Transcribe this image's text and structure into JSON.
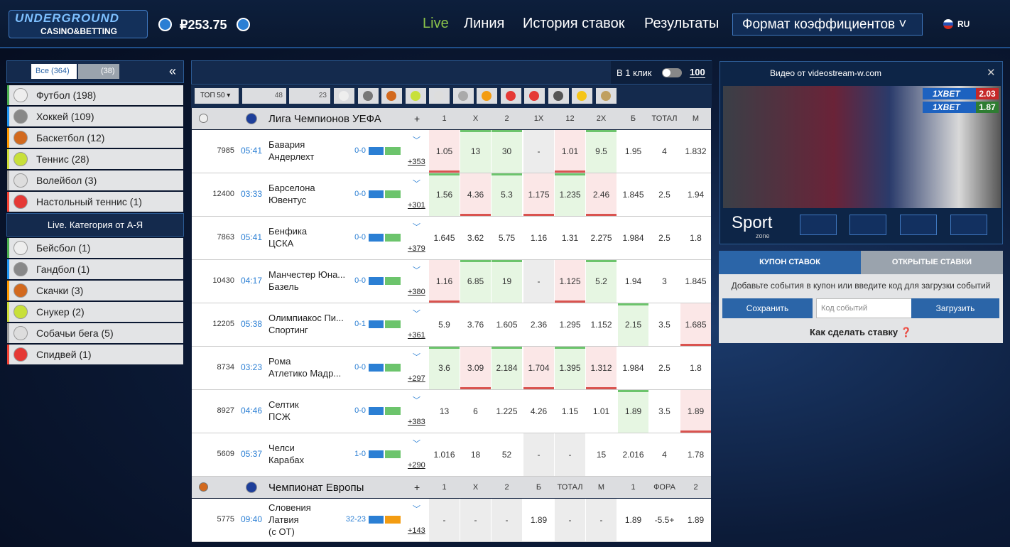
{
  "header": {
    "logo": "UNDERGROUND",
    "logo_sub": "CASINO&BETTING",
    "balance": "₽253.75",
    "nav": [
      "Live",
      "Линия",
      "История ставок",
      "Результаты"
    ],
    "odds_format": "Формат коэффициентов",
    "lang": "RU"
  },
  "sidebar": {
    "tab_all": "Все",
    "tab_all_count": "(364)",
    "tab_video_count": "(38)",
    "sports": [
      "Футбол (198)",
      "Хоккей (109)",
      "Баскетбол (12)",
      "Теннис (28)",
      "Волейбол (3)",
      "Настольный теннис (1)"
    ],
    "category_title": "Live. Категория от А-Я",
    "more_sports": [
      "Бейсбол (1)",
      "Гандбол (1)",
      "Скачки (3)",
      "Снукер (2)",
      "Собачьи бега (5)",
      "Спидвей (1)"
    ]
  },
  "toolbar": {
    "one_click": "В 1 клик",
    "stake": "100",
    "top": "ТОП 50",
    "count_field": "48",
    "count_video": "23"
  },
  "leagues": [
    {
      "name": "Лига Чемпионов УЕФА",
      "plus": "+",
      "headers": [
        "1",
        "X",
        "2",
        "1X",
        "12",
        "2X",
        "Б",
        "ТОТАЛ",
        "М"
      ],
      "matches": [
        {
          "id": "7985",
          "time": "05:41",
          "teams": [
            "Бавария",
            "Андерлехт"
          ],
          "score": "0-0",
          "more": "+353",
          "odds": [
            "1.05",
            "13",
            "30",
            "-",
            "1.01",
            "9.5",
            "1.95",
            "4",
            "1.832"
          ],
          "trend": [
            "down",
            "up",
            "up",
            "flat",
            "down",
            "up",
            "flat",
            "flat",
            "flat"
          ]
        },
        {
          "id": "12400",
          "time": "03:33",
          "teams": [
            "Барселона",
            "Ювентус"
          ],
          "score": "0-0",
          "more": "+301",
          "odds": [
            "1.56",
            "4.36",
            "5.3",
            "1.175",
            "1.235",
            "2.46",
            "1.845",
            "2.5",
            "1.94"
          ],
          "trend": [
            "up",
            "down",
            "up",
            "down",
            "up",
            "down",
            "flat",
            "flat",
            "flat"
          ]
        },
        {
          "id": "7863",
          "time": "05:41",
          "teams": [
            "Бенфика",
            "ЦСКА"
          ],
          "score": "0-0",
          "more": "+379",
          "odds": [
            "1.645",
            "3.62",
            "5.75",
            "1.16",
            "1.31",
            "2.275",
            "1.984",
            "2.5",
            "1.8"
          ]
        },
        {
          "id": "10430",
          "time": "04:17",
          "teams": [
            "Манчестер Юна...",
            "Базель"
          ],
          "score": "0-0",
          "more": "+380",
          "odds": [
            "1.16",
            "6.85",
            "19",
            "-",
            "1.125",
            "5.2",
            "1.94",
            "3",
            "1.845"
          ],
          "trend": [
            "down",
            "up",
            "up",
            "flat",
            "down",
            "up",
            "flat",
            "flat",
            "flat"
          ]
        },
        {
          "id": "12205",
          "time": "05:38",
          "teams": [
            "Олимпиакос Пи...",
            "Спортинг"
          ],
          "score": "0-1",
          "more": "+361",
          "odds": [
            "5.9",
            "3.76",
            "1.605",
            "2.36",
            "1.295",
            "1.152",
            "2.15",
            "3.5",
            "1.685"
          ],
          "trend": [
            "flat",
            "flat",
            "flat",
            "flat",
            "flat",
            "flat",
            "up",
            "flat",
            "down"
          ]
        },
        {
          "id": "8734",
          "time": "03:23",
          "teams": [
            "Рома",
            "Атлетико Мадр..."
          ],
          "score": "0-0",
          "more": "+297",
          "odds": [
            "3.6",
            "3.09",
            "2.184",
            "1.704",
            "1.395",
            "1.312",
            "1.984",
            "2.5",
            "1.8"
          ],
          "trend": [
            "up",
            "down",
            "up",
            "down",
            "up",
            "down",
            "flat",
            "flat",
            "flat"
          ]
        },
        {
          "id": "8927",
          "time": "04:46",
          "teams": [
            "Селтик",
            "ПСЖ"
          ],
          "score": "0-0",
          "more": "+383",
          "odds": [
            "13",
            "6",
            "1.225",
            "4.26",
            "1.15",
            "1.01",
            "1.89",
            "3.5",
            "1.89"
          ],
          "trend": [
            "flat",
            "flat",
            "flat",
            "flat",
            "flat",
            "flat",
            "up",
            "flat",
            "down"
          ]
        },
        {
          "id": "5609",
          "time": "05:37",
          "teams": [
            "Челси",
            "Карабах"
          ],
          "score": "1-0",
          "more": "+290",
          "odds": [
            "1.016",
            "18",
            "52",
            "-",
            "-",
            "15",
            "2.016",
            "4",
            "1.78"
          ]
        }
      ]
    },
    {
      "name": "Чемпионат Европы",
      "plus": "+",
      "headers": [
        "1",
        "X",
        "2",
        "Б",
        "ТОТАЛ",
        "М",
        "1",
        "ФОРА",
        "2"
      ],
      "matches": [
        {
          "id": "5775",
          "time": "09:40",
          "teams": [
            "Словения",
            "Латвия",
            "(с ОТ)"
          ],
          "score": "32-23",
          "more": "+143",
          "odds": [
            "-",
            "-",
            "-",
            "1.89",
            "-",
            "-",
            "1.89",
            "-5.5+",
            "1.89"
          ]
        }
      ]
    }
  ],
  "video": {
    "title": "Видео от videostream-w.com",
    "brand": "Sport",
    "brand_sub": "zone",
    "bets": [
      {
        "name": "1XBET",
        "odd": "2.03"
      },
      {
        "name": "1XBET",
        "odd": "1.87"
      }
    ]
  },
  "coupon": {
    "tabs": [
      "КУПОН СТАВОК",
      "ОТКРЫТЫЕ СТАВКИ"
    ],
    "hint": "Добавьте события в купон или введите код для загрузки событий",
    "save": "Сохранить",
    "code_placeholder": "Код событий",
    "load": "Загрузить",
    "howto": "Как сделать ставку"
  }
}
